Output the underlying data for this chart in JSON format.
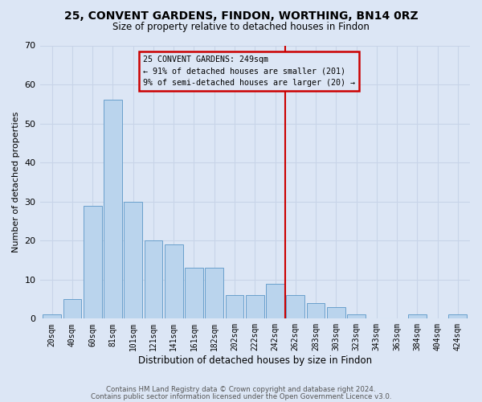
{
  "title1": "25, CONVENT GARDENS, FINDON, WORTHING, BN14 0RZ",
  "title2": "Size of property relative to detached houses in Findon",
  "xlabel": "Distribution of detached houses by size in Findon",
  "ylabel": "Number of detached properties",
  "bin_labels": [
    "20sqm",
    "40sqm",
    "60sqm",
    "81sqm",
    "101sqm",
    "121sqm",
    "141sqm",
    "161sqm",
    "182sqm",
    "202sqm",
    "222sqm",
    "242sqm",
    "262sqm",
    "283sqm",
    "303sqm",
    "323sqm",
    "343sqm",
    "363sqm",
    "384sqm",
    "404sqm",
    "424sqm"
  ],
  "bar_values": [
    1,
    5,
    29,
    56,
    30,
    20,
    19,
    13,
    13,
    6,
    6,
    9,
    6,
    4,
    3,
    1,
    0,
    0,
    1,
    0,
    1
  ],
  "bar_color": "#bad4ed",
  "bar_edge_color": "#6aa0cc",
  "grid_color": "#c8d4e8",
  "bg_color": "#dce6f5",
  "vline_color": "#cc0000",
  "annotation_line1": "25 CONVENT GARDENS: 249sqm",
  "annotation_line2": "← 91% of detached houses are smaller (201)",
  "annotation_line3": "9% of semi-detached houses are larger (20) →",
  "annotation_box_color": "#cc0000",
  "footer1": "Contains HM Land Registry data © Crown copyright and database right 2024.",
  "footer2": "Contains public sector information licensed under the Open Government Licence v3.0.",
  "ylim": [
    0,
    70
  ],
  "yticks": [
    0,
    10,
    20,
    30,
    40,
    50,
    60,
    70
  ],
  "vline_x_idx": 11.5
}
